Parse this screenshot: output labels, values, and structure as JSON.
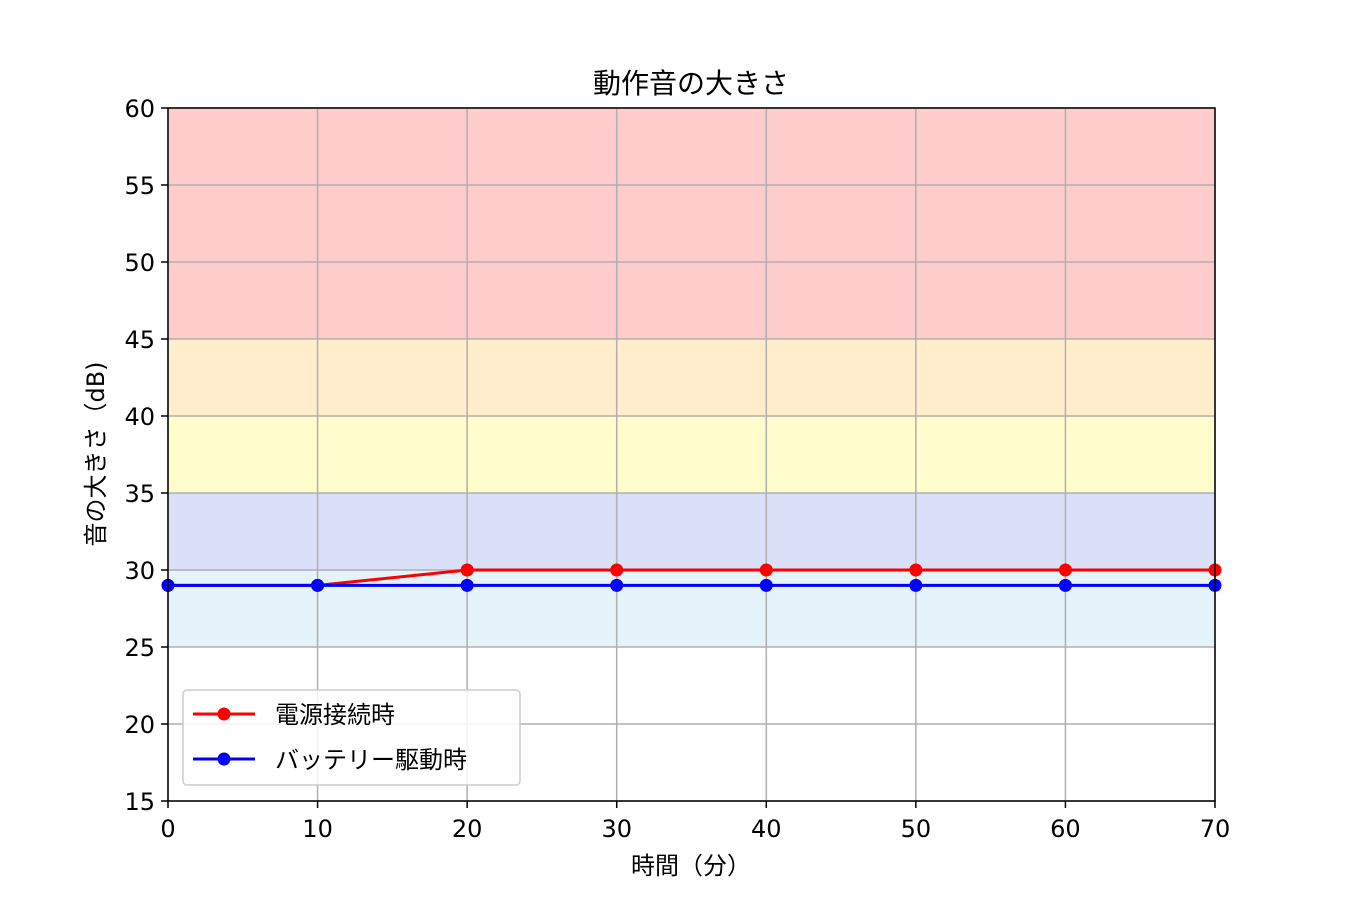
{
  "chart_data": {
    "type": "line",
    "title": "動作音の大きさ",
    "xlabel": "時間（分）",
    "ylabel": "音の大きさ（dB)",
    "x": [
      0,
      10,
      20,
      30,
      40,
      50,
      60,
      70
    ],
    "xlim": [
      0,
      70
    ],
    "ylim": [
      15,
      60
    ],
    "xticks": [
      0,
      10,
      20,
      30,
      40,
      50,
      60,
      70
    ],
    "yticks": [
      15,
      20,
      25,
      30,
      35,
      40,
      45,
      50,
      55,
      60
    ],
    "grid": true,
    "legend_position": "bottom-left",
    "series": [
      {
        "name": "電源接続時",
        "color": "#ff0000",
        "values": [
          29,
          29,
          30,
          30,
          30,
          30,
          30,
          30
        ]
      },
      {
        "name": "バッテリー駆動時",
        "color": "#0000ff",
        "values": [
          29,
          29,
          29,
          29,
          29,
          29,
          29,
          29
        ]
      }
    ],
    "bands": [
      {
        "from": 25,
        "to": 30,
        "color": "#e5f3fa"
      },
      {
        "from": 30,
        "to": 35,
        "color": "#d9e0f7"
      },
      {
        "from": 35,
        "to": 40,
        "color": "#fffdcc"
      },
      {
        "from": 40,
        "to": 45,
        "color": "#ffedcc"
      },
      {
        "from": 45,
        "to": 60,
        "color": "#ffcccc"
      }
    ]
  }
}
